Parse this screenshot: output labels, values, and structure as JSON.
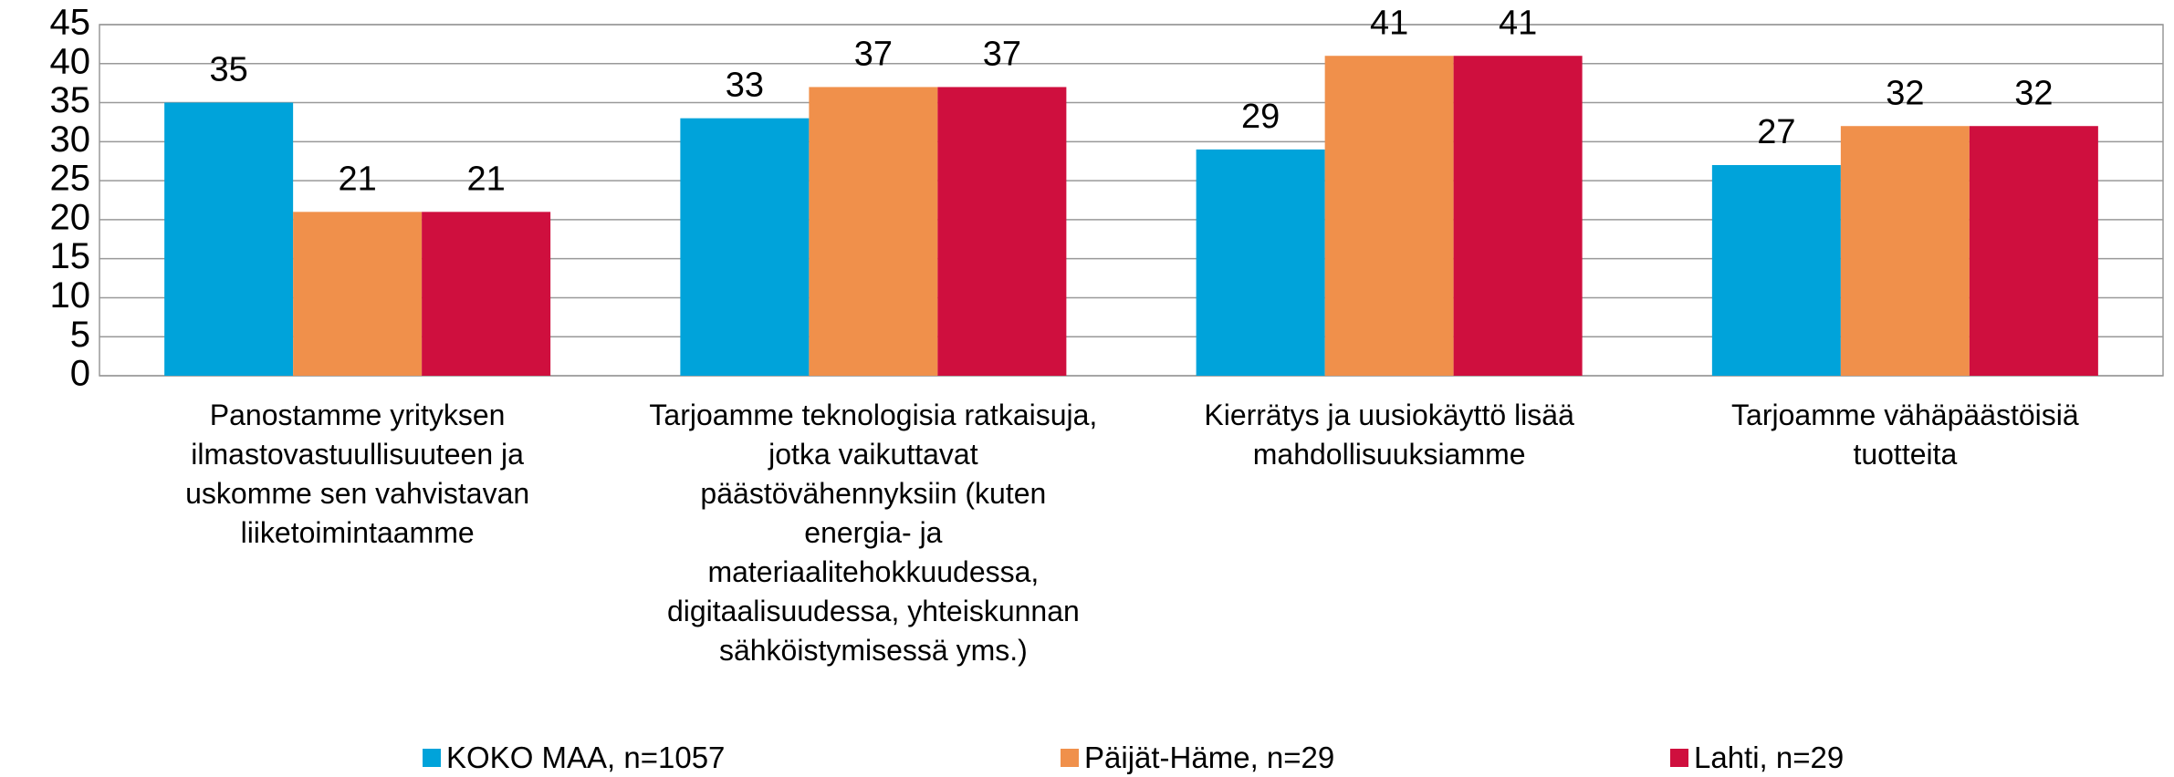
{
  "chart_data": {
    "type": "bar",
    "categories": [
      "Panostamme yrityksen ilmastovastuullisuuteen ja uskomme sen vahvistavan liiketoimintaamme",
      "Tarjoamme teknologisia ratkaisuja, jotka vaikuttavat päästövähennyksiin (kuten energia- ja materiaalitehokkuudessa, digitaalisuudessa, yhteiskunnan sähköistymisessä yms.)",
      "Kierrätys ja uusiokäyttö lisää mahdollisuuksiamme",
      "Tarjoamme vähäpäästöisiä tuotteita"
    ],
    "series": [
      {
        "name": "KOKO MAA, n=1057",
        "color": "#00a3da",
        "values": [
          35,
          33,
          29,
          27
        ]
      },
      {
        "name": "Päijät-Häme, n=29",
        "color": "#f0904b",
        "values": [
          21,
          37,
          41,
          32
        ]
      },
      {
        "name": "Lahti, n=29",
        "color": "#cf0f3e",
        "values": [
          21,
          37,
          41,
          32
        ]
      }
    ],
    "ylim": [
      0,
      45
    ],
    "yticks": [
      0,
      5,
      10,
      15,
      20,
      25,
      30,
      35,
      40,
      45
    ],
    "grid": true,
    "legend": "bottom"
  }
}
